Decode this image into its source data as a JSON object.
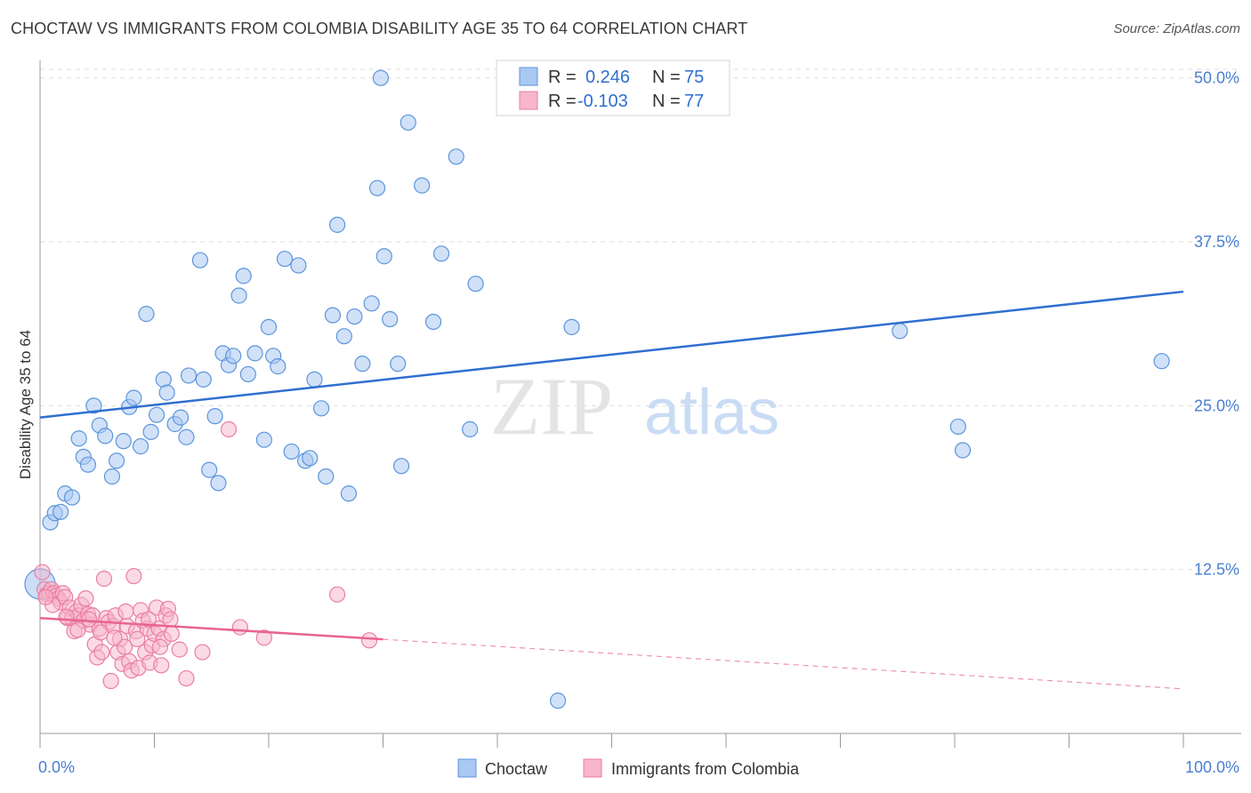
{
  "header": {
    "title": "CHOCTAW VS IMMIGRANTS FROM COLOMBIA DISABILITY AGE 35 TO 64 CORRELATION CHART",
    "source": "Source: ZipAtlas.com"
  },
  "watermark": {
    "part1": "ZIP",
    "part2": "atlas"
  },
  "colors": {
    "choctaw_fill": "#a9c8f2",
    "choctaw_stroke": "#5d95dc",
    "choctaw_line": "#2f6fd0",
    "colombia_fill": "#f7b6cb",
    "colombia_stroke": "#ea7ea3",
    "colombia_line": "#e8648f",
    "tick_label": "#4a7fd1",
    "grid": "#dddddd"
  },
  "legend": {
    "r_label": "R =",
    "n_label": "N =",
    "series": [
      {
        "r": "0.246",
        "n": "75"
      },
      {
        "r": "-0.103",
        "n": "77"
      }
    ]
  },
  "bottom_legend": [
    "Choctaw",
    "Immigrants from Colombia"
  ],
  "chart_data": {
    "type": "scatter",
    "title": "CHOCTAW VS IMMIGRANTS FROM COLOMBIA DISABILITY AGE 35 TO 64 CORRELATION CHART",
    "xlabel": "",
    "ylabel": "Disability Age 35 to 64",
    "xlim": [
      0,
      100
    ],
    "ylim": [
      0,
      51.2
    ],
    "x_tick_labels": [
      "0.0%",
      "100.0%"
    ],
    "y_ticks": [
      12.5,
      25.0,
      37.5,
      50.0
    ],
    "y_tick_labels": [
      "12.5%",
      "25.0%",
      "37.5%",
      "50.0%"
    ],
    "grid": true,
    "legend_position": "top-center",
    "series": [
      {
        "name": "Choctaw",
        "r": 0.246,
        "n": 75,
        "trend": {
          "x": [
            0,
            100
          ],
          "y": [
            24.1,
            33.7
          ],
          "dashed_from": null
        },
        "points": [
          [
            0.9,
            16.1
          ],
          [
            1.3,
            16.8
          ],
          [
            1.8,
            16.9
          ],
          [
            2.2,
            18.3
          ],
          [
            2.8,
            18.0
          ],
          [
            3.4,
            22.5
          ],
          [
            3.8,
            21.1
          ],
          [
            4.2,
            20.5
          ],
          [
            4.7,
            25.0
          ],
          [
            5.2,
            23.5
          ],
          [
            5.7,
            22.7
          ],
          [
            6.3,
            19.6
          ],
          [
            6.7,
            20.8
          ],
          [
            7.3,
            22.3
          ],
          [
            7.8,
            24.9
          ],
          [
            8.2,
            25.6
          ],
          [
            8.8,
            21.9
          ],
          [
            9.3,
            32.0
          ],
          [
            9.7,
            23.0
          ],
          [
            10.2,
            24.3
          ],
          [
            10.8,
            27.0
          ],
          [
            11.1,
            26.0
          ],
          [
            11.8,
            23.6
          ],
          [
            12.3,
            24.1
          ],
          [
            12.8,
            22.6
          ],
          [
            13.0,
            27.3
          ],
          [
            14.0,
            36.1
          ],
          [
            14.3,
            27.0
          ],
          [
            14.8,
            20.1
          ],
          [
            15.3,
            24.2
          ],
          [
            15.6,
            19.1
          ],
          [
            16.0,
            29.0
          ],
          [
            16.5,
            28.1
          ],
          [
            16.9,
            28.8
          ],
          [
            17.4,
            33.4
          ],
          [
            17.8,
            34.9
          ],
          [
            18.2,
            27.4
          ],
          [
            18.8,
            29.0
          ],
          [
            19.6,
            22.4
          ],
          [
            20.0,
            31.0
          ],
          [
            20.4,
            28.8
          ],
          [
            20.8,
            28.0
          ],
          [
            21.4,
            36.2
          ],
          [
            22.0,
            21.5
          ],
          [
            22.6,
            35.7
          ],
          [
            23.2,
            20.8
          ],
          [
            23.6,
            21.0
          ],
          [
            24.0,
            27.0
          ],
          [
            24.6,
            24.8
          ],
          [
            25.0,
            19.6
          ],
          [
            25.6,
            31.9
          ],
          [
            26.0,
            38.8
          ],
          [
            26.6,
            30.3
          ],
          [
            27.0,
            18.3
          ],
          [
            27.5,
            31.8
          ],
          [
            28.2,
            28.2
          ],
          [
            29.0,
            32.8
          ],
          [
            29.5,
            41.6
          ],
          [
            30.1,
            36.4
          ],
          [
            30.6,
            31.6
          ],
          [
            31.3,
            28.2
          ],
          [
            31.6,
            20.4
          ],
          [
            32.2,
            46.6
          ],
          [
            33.4,
            41.8
          ],
          [
            34.4,
            31.4
          ],
          [
            35.1,
            36.6
          ],
          [
            36.4,
            44.0
          ],
          [
            37.6,
            23.2
          ],
          [
            38.1,
            34.3
          ],
          [
            45.3,
            2.5
          ],
          [
            46.5,
            31.0
          ],
          [
            75.2,
            30.7
          ],
          [
            80.3,
            23.4
          ],
          [
            80.7,
            21.6
          ],
          [
            98.1,
            28.4
          ]
        ],
        "extra_point": [
          29.8,
          50.0
        ]
      },
      {
        "name": "Immigrants from Colombia",
        "r": -0.103,
        "n": 77,
        "trend": {
          "x": [
            0,
            100
          ],
          "y": [
            8.8,
            3.4
          ],
          "dashed_from": 30
        },
        "points": [
          [
            0.2,
            12.3
          ],
          [
            0.4,
            11.0
          ],
          [
            0.6,
            10.6
          ],
          [
            0.8,
            10.7
          ],
          [
            1.0,
            11.0
          ],
          [
            1.2,
            10.7
          ],
          [
            1.4,
            10.5
          ],
          [
            1.6,
            10.3
          ],
          [
            1.8,
            10.0
          ],
          [
            2.0,
            10.7
          ],
          [
            2.2,
            10.4
          ],
          [
            2.4,
            8.8
          ],
          [
            2.6,
            9.6
          ],
          [
            2.8,
            8.8
          ],
          [
            3.0,
            7.8
          ],
          [
            3.2,
            9.3
          ],
          [
            3.4,
            9.0
          ],
          [
            3.6,
            9.8
          ],
          [
            3.8,
            8.6
          ],
          [
            4.0,
            10.3
          ],
          [
            4.2,
            9.1
          ],
          [
            4.4,
            8.3
          ],
          [
            4.6,
            9.0
          ],
          [
            4.8,
            6.8
          ],
          [
            5.0,
            5.8
          ],
          [
            5.2,
            8.0
          ],
          [
            5.4,
            6.2
          ],
          [
            5.6,
            11.8
          ],
          [
            5.8,
            8.8
          ],
          [
            6.0,
            8.5
          ],
          [
            6.2,
            4.0
          ],
          [
            6.4,
            8.2
          ],
          [
            6.6,
            9.0
          ],
          [
            6.8,
            6.2
          ],
          [
            7.0,
            7.2
          ],
          [
            7.2,
            5.3
          ],
          [
            7.4,
            6.6
          ],
          [
            7.6,
            8.2
          ],
          [
            7.8,
            5.5
          ],
          [
            8.0,
            4.8
          ],
          [
            8.2,
            12.0
          ],
          [
            8.4,
            7.8
          ],
          [
            8.6,
            5.0
          ],
          [
            8.8,
            9.4
          ],
          [
            9.0,
            8.6
          ],
          [
            9.2,
            6.2
          ],
          [
            9.4,
            8.0
          ],
          [
            9.6,
            5.4
          ],
          [
            9.8,
            6.7
          ],
          [
            10.0,
            7.6
          ],
          [
            10.2,
            9.6
          ],
          [
            10.4,
            8.0
          ],
          [
            10.6,
            5.2
          ],
          [
            10.8,
            7.2
          ],
          [
            11.0,
            9.0
          ],
          [
            11.2,
            9.5
          ],
          [
            11.4,
            8.7
          ],
          [
            12.2,
            6.4
          ],
          [
            12.8,
            4.2
          ],
          [
            14.2,
            6.2
          ],
          [
            16.5,
            23.2
          ],
          [
            17.5,
            8.1
          ],
          [
            19.6,
            7.3
          ],
          [
            26.0,
            10.6
          ],
          [
            28.8,
            7.1
          ],
          [
            2.3,
            8.9
          ],
          [
            3.3,
            7.9
          ],
          [
            4.3,
            8.7
          ],
          [
            5.3,
            7.7
          ],
          [
            6.5,
            7.3
          ],
          [
            7.5,
            9.3
          ],
          [
            8.5,
            7.2
          ],
          [
            9.5,
            8.7
          ],
          [
            10.5,
            6.6
          ],
          [
            11.5,
            7.6
          ],
          [
            1.1,
            9.8
          ],
          [
            0.5,
            10.4
          ]
        ]
      }
    ]
  }
}
